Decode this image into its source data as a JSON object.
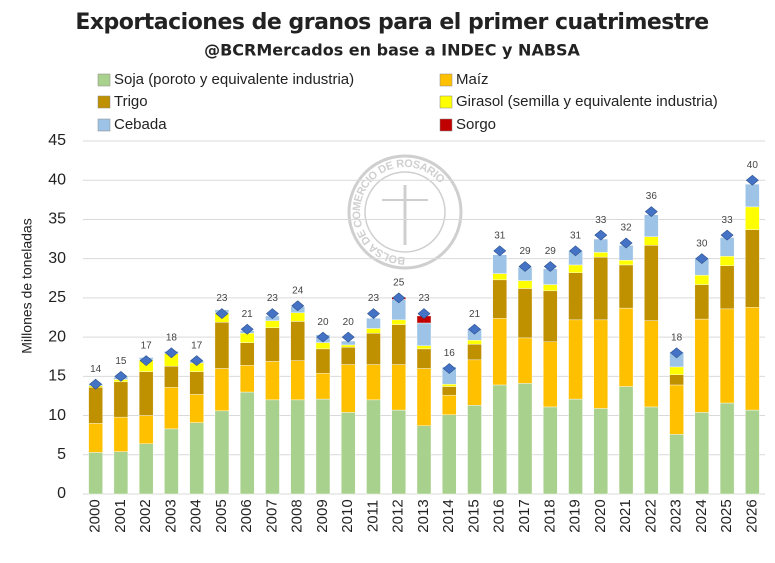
{
  "chart_data": {
    "type": "stacked-bar",
    "title": "Exportaciones de granos para el primer cuatrimestre",
    "subtitle": "@BCRMercados en base a INDEC y NABSA",
    "y_label": "Millones de toneladas",
    "watermark": "BOLSA DE COMERCIO DE ROSARIO",
    "categories": [
      "2000",
      "2001",
      "2002",
      "2003",
      "2004",
      "2005",
      "2006",
      "2007",
      "2008",
      "2009",
      "2010",
      "2011",
      "2012",
      "2013",
      "2014",
      "2015",
      "2016",
      "2017",
      "2018",
      "2019",
      "2020",
      "2021",
      "2022",
      "2023",
      "2024",
      "2025",
      "2026"
    ],
    "series": [
      {
        "name": "Soja (poroto y equivalente industria)",
        "color": "#a9d18e",
        "values": [
          5.3,
          5.4,
          6.4,
          8.3,
          9.1,
          10.6,
          13.0,
          12.0,
          12.0,
          12.1,
          10.4,
          12.0,
          10.7,
          8.7,
          10.1,
          11.3,
          13.9,
          14.1,
          11.1,
          12.1,
          10.9,
          13.7,
          11.1,
          7.6,
          10.4,
          11.6,
          10.7
        ]
      },
      {
        "name": "Maíz",
        "color": "#ffc000",
        "values": [
          3.7,
          4.4,
          3.6,
          5.3,
          3.6,
          5.4,
          3.4,
          4.9,
          5.0,
          3.3,
          6.1,
          4.5,
          5.8,
          7.3,
          2.5,
          5.8,
          8.5,
          5.8,
          8.3,
          10.1,
          11.3,
          10.0,
          11.0,
          6.3,
          11.9,
          12.0,
          13.1
        ]
      },
      {
        "name": "Trigo",
        "color": "#bf9000",
        "values": [
          4.6,
          4.5,
          5.6,
          2.7,
          2.9,
          5.9,
          2.9,
          4.3,
          5.0,
          3.1,
          2.2,
          4.0,
          5.1,
          2.5,
          1.1,
          2.0,
          4.9,
          6.3,
          6.5,
          6.0,
          8.0,
          5.5,
          9.6,
          1.3,
          4.4,
          5.5,
          9.9
        ]
      },
      {
        "name": "Girasol (semilla y equivalente industria)",
        "color": "#ffff00",
        "values": [
          0.2,
          0.3,
          1.5,
          1.6,
          1.1,
          1.2,
          1.2,
          0.9,
          1.1,
          0.8,
          0.3,
          0.6,
          0.6,
          0.4,
          0.3,
          0.5,
          0.8,
          1.0,
          0.8,
          1.0,
          0.6,
          0.6,
          1.1,
          1.0,
          1.2,
          1.2,
          2.9
        ]
      },
      {
        "name": "Cebada",
        "color": "#9dc3e6",
        "values": [
          0.2,
          0.3,
          0.3,
          0.3,
          0.3,
          0.4,
          0.3,
          0.6,
          0.8,
          1.0,
          0.5,
          1.3,
          2.6,
          2.9,
          2.2,
          1.4,
          2.4,
          1.7,
          2.0,
          1.8,
          1.7,
          1.9,
          2.8,
          1.9,
          2.2,
          2.4,
          2.9
        ]
      },
      {
        "name": "Sorgo",
        "color": "#c00000",
        "values": [
          0,
          0,
          0,
          0,
          0,
          0,
          0,
          0,
          0,
          0,
          0,
          0,
          0.3,
          0.9,
          0,
          0,
          0,
          0,
          0,
          0,
          0,
          0,
          0,
          0,
          0,
          0,
          0
        ]
      }
    ],
    "totals": [
      14,
      15,
      17,
      18,
      17,
      23,
      21,
      23,
      24,
      20,
      20,
      23,
      25,
      23,
      16,
      21,
      31,
      29,
      29,
      31,
      33,
      32,
      36,
      18,
      30,
      33,
      40
    ],
    "total_color": "#4472c4",
    "ylim": [
      0,
      45
    ],
    "yticks": [
      0,
      5,
      10,
      15,
      20,
      25,
      30,
      35,
      40,
      45
    ],
    "grid": true
  }
}
